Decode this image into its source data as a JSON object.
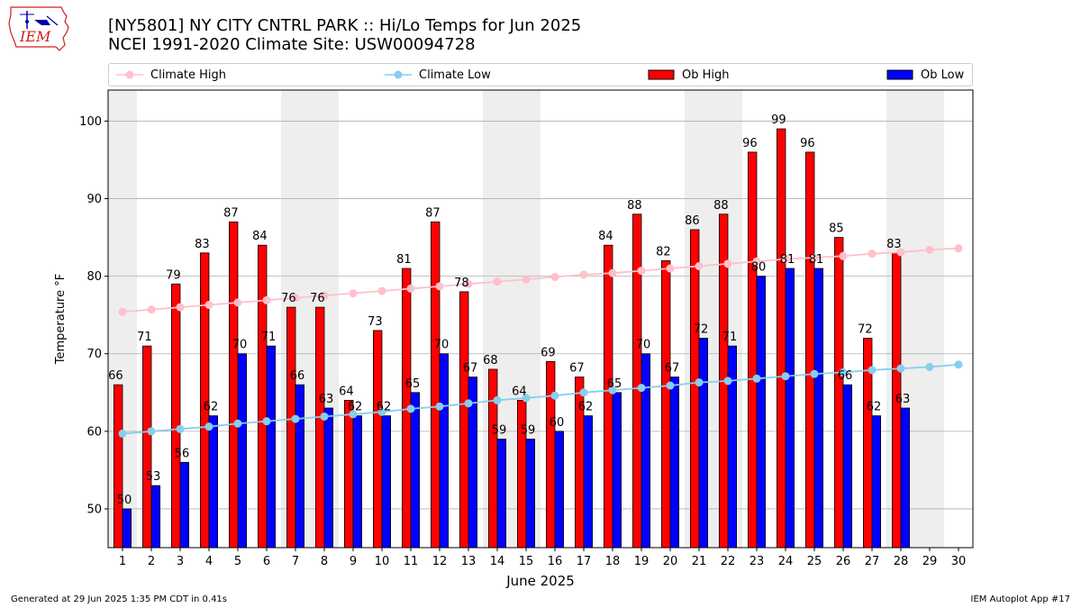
{
  "header": {
    "title_line1": "[NY5801] NY CITY CNTRL PARK :: Hi/Lo Temps for Jun 2025",
    "title_line2": "NCEI 1991-2020 Climate Site: USW00094728",
    "logo_text": "IEM"
  },
  "footer": {
    "generated": "Generated at 29 Jun 2025 1:35 PM CDT in 0.41s",
    "app": "IEM Autoplot App #17"
  },
  "chart_data": {
    "type": "bar",
    "xlabel": "June 2025",
    "ylabel": "Temperature °F",
    "ylim": [
      45,
      104
    ],
    "xlim": [
      0.5,
      30.5
    ],
    "yticks": [
      50,
      60,
      70,
      80,
      90,
      100
    ],
    "categories": [
      "1",
      "2",
      "3",
      "4",
      "5",
      "6",
      "7",
      "8",
      "9",
      "10",
      "11",
      "12",
      "13",
      "14",
      "15",
      "16",
      "17",
      "18",
      "19",
      "20",
      "21",
      "22",
      "23",
      "24",
      "25",
      "26",
      "27",
      "28",
      "29",
      "30"
    ],
    "weekend_bands": [
      [
        1,
        1
      ],
      [
        7,
        8
      ],
      [
        14,
        15
      ],
      [
        21,
        22
      ],
      [
        28,
        29
      ]
    ],
    "grid": true,
    "legend_position": "top",
    "series": [
      {
        "name": "Ob High",
        "kind": "bar",
        "color": "#ff0000",
        "values": [
          66,
          71,
          79,
          83,
          87,
          84,
          76,
          76,
          64,
          73,
          81,
          87,
          78,
          68,
          64,
          69,
          67,
          84,
          88,
          82,
          86,
          88,
          96,
          99,
          96,
          85,
          72,
          83,
          null,
          null
        ]
      },
      {
        "name": "Ob Low",
        "kind": "bar",
        "color": "#0000ff",
        "values": [
          50,
          53,
          56,
          62,
          70,
          71,
          66,
          63,
          62,
          62,
          65,
          70,
          67,
          59,
          59,
          60,
          62,
          65,
          70,
          67,
          72,
          71,
          80,
          81,
          81,
          66,
          62,
          63,
          null,
          null
        ]
      },
      {
        "name": "Climate High",
        "kind": "line",
        "color": "#ffc0cb",
        "values": [
          75.4,
          75.7,
          76.0,
          76.3,
          76.6,
          76.9,
          77.2,
          77.5,
          77.8,
          78.1,
          78.4,
          78.7,
          79.0,
          79.3,
          79.6,
          79.9,
          80.2,
          80.4,
          80.7,
          81.0,
          81.3,
          81.6,
          81.9,
          82.2,
          82.4,
          82.6,
          82.9,
          83.1,
          83.4,
          83.6
        ]
      },
      {
        "name": "Climate Low",
        "kind": "line",
        "color": "#87ceeb",
        "values": [
          59.7,
          60.0,
          60.3,
          60.6,
          61.0,
          61.3,
          61.6,
          61.9,
          62.2,
          62.5,
          62.9,
          63.2,
          63.6,
          64.0,
          64.3,
          64.6,
          65.0,
          65.3,
          65.6,
          65.9,
          66.3,
          66.5,
          66.8,
          67.1,
          67.4,
          67.6,
          67.9,
          68.1,
          68.3,
          68.6
        ]
      }
    ]
  }
}
